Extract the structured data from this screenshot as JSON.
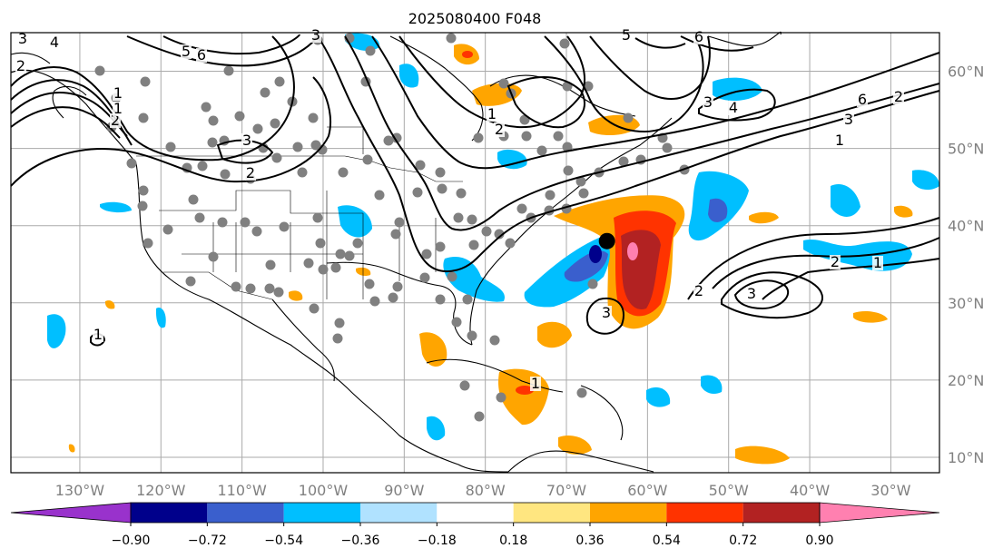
{
  "title": "2025080400 F048",
  "longitude_ticks": [
    "130°W",
    "120°W",
    "110°W",
    "100°W",
    "90°W",
    "80°W",
    "70°W",
    "60°W",
    "50°W",
    "40°W",
    "30°W"
  ],
  "latitude_ticks": [
    "60°N",
    "50°N",
    "40°N",
    "30°N",
    "20°N",
    "10°N"
  ],
  "colorbar": {
    "labels": [
      "−0.90",
      "−0.72",
      "−0.54",
      "−0.36",
      "−0.18",
      "0.18",
      "0.36",
      "0.54",
      "0.72",
      "0.90"
    ],
    "colors": [
      "#9932cc",
      "#00008b",
      "#3a5fcd",
      "#00bfff",
      "#b0e2ff",
      "#ffffff",
      "#ffe680",
      "#ffa500",
      "#ff3300",
      "#b22222",
      "#ff80b0"
    ]
  },
  "contour_labels": [
    "3",
    "4",
    "5",
    "6",
    "3",
    "1",
    "2",
    "3",
    "2",
    "1",
    "2",
    "3",
    "4",
    "5",
    "6",
    "2",
    "6",
    "3",
    "1",
    "2",
    "1",
    "3",
    "2",
    "3",
    "1",
    "1",
    "2",
    "1"
  ],
  "marker": {
    "lon": -65,
    "lat": 38
  }
}
